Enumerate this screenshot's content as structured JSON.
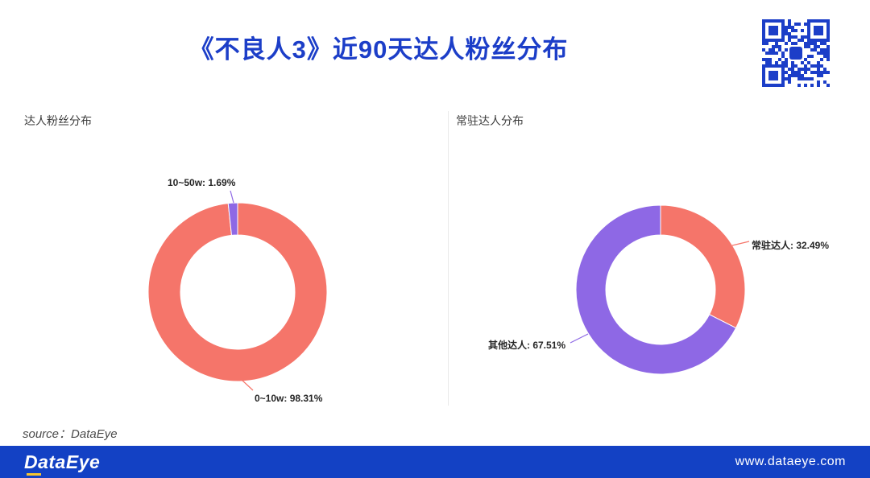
{
  "page": {
    "title": "《不良人3》近90天达人粉丝分布",
    "source": "source：DataEye"
  },
  "colors": {
    "title": "#1c3ec8",
    "salmon": "#f5756a",
    "purple": "#8e68e5"
  },
  "footer": {
    "logo": "DataEye",
    "url": "www.dataeye.com",
    "bg_color": "#1341c4"
  },
  "chart_data": [
    {
      "type": "pie",
      "subtype": "donut",
      "title": "达人粉丝分布",
      "start_angle": "top",
      "direction": "clockwise",
      "legend_position": "none",
      "slices": [
        {
          "label": "0~10w",
          "value": 98.31,
          "pct_display": "0~10w: 98.31%",
          "color": "#f5756a"
        },
        {
          "label": "10~50w",
          "value": 1.69,
          "pct_display": "10~50w: 1.69%",
          "color": "#8e68e5"
        }
      ]
    },
    {
      "type": "pie",
      "subtype": "donut",
      "title": "常驻达人分布",
      "start_angle": "top",
      "direction": "clockwise",
      "legend_position": "none",
      "slices": [
        {
          "label": "常驻达人",
          "value": 32.49,
          "pct_display": "常驻达人: 32.49%",
          "color": "#f5756a"
        },
        {
          "label": "其他达人",
          "value": 67.51,
          "pct_display": "其他达人: 67.51%",
          "color": "#8e68e5"
        }
      ]
    }
  ]
}
